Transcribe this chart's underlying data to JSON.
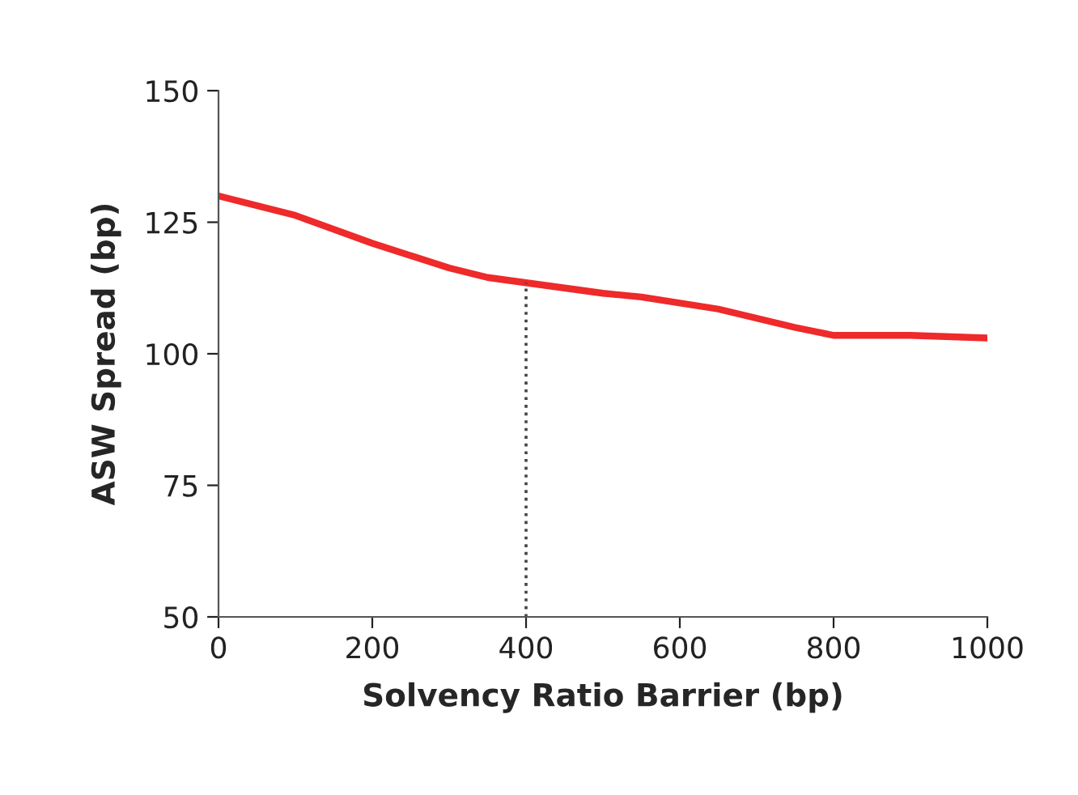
{
  "chart_data": {
    "type": "line",
    "xlabel": "Solvency Ratio Barrier (bp)",
    "ylabel": "ASW Spread (bp)",
    "x": [
      0,
      100,
      200,
      300,
      350,
      400,
      500,
      550,
      650,
      750,
      800,
      900,
      1000
    ],
    "series": [
      {
        "color": "#ee2a2a",
        "values": [
          130,
          126.3,
          121,
          116.3,
          114.5,
          113.5,
          111.5,
          110.8,
          108.5,
          105,
          103.5,
          103.5,
          103
        ]
      }
    ],
    "xlim": [
      0,
      1000
    ],
    "xticks": [
      0,
      200,
      400,
      600,
      800,
      1000
    ],
    "ylim": [
      50,
      150
    ],
    "yticks": [
      50,
      75,
      100,
      125,
      150
    ],
    "ref_lines": [
      {
        "axis": "x",
        "value": 400,
        "color": "#444444",
        "line_style": "dotted"
      }
    ],
    "grid": false,
    "legend": false,
    "line_style": "solid",
    "marker": "none"
  }
}
